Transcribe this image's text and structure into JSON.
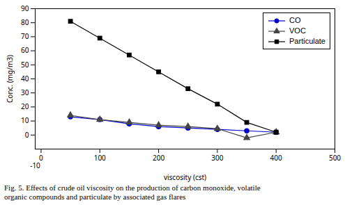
{
  "chart_data": {
    "type": "line",
    "x": [
      50,
      100,
      150,
      200,
      250,
      300,
      350,
      400
    ],
    "series": [
      {
        "name": "CO",
        "color": "#0000cc",
        "marker": "circle",
        "values": [
          13,
          11,
          8,
          6,
          5,
          4,
          3,
          2
        ]
      },
      {
        "name": "VOC",
        "color": "#444444",
        "marker": "triangle",
        "values": [
          14,
          11,
          9,
          7,
          6,
          4.5,
          -2,
          2
        ]
      },
      {
        "name": "Particulate",
        "color": "#000000",
        "marker": "square",
        "values": [
          81,
          69,
          57,
          45,
          33,
          22,
          9,
          2
        ]
      }
    ],
    "xlabel": "viscosity (cst)",
    "ylabel": "Conc. (mg/m3)",
    "xlim": [
      -10,
      500
    ],
    "ylim": [
      -10,
      90
    ],
    "xticks": [
      0,
      100,
      200,
      300,
      400,
      500
    ],
    "yticks": [
      0,
      10,
      20,
      30,
      40,
      50,
      60,
      70,
      80,
      90
    ],
    "annotations": [
      {
        "text": "-10",
        "x": -10,
        "y": -10
      }
    ],
    "caption": [
      "Fig. 5. Effects of crude oil viscosity on the production of carbon monoxide, volatile",
      "organic compounds and particulate by associated gas flares"
    ],
    "legend": "upper right",
    "grid": false
  }
}
